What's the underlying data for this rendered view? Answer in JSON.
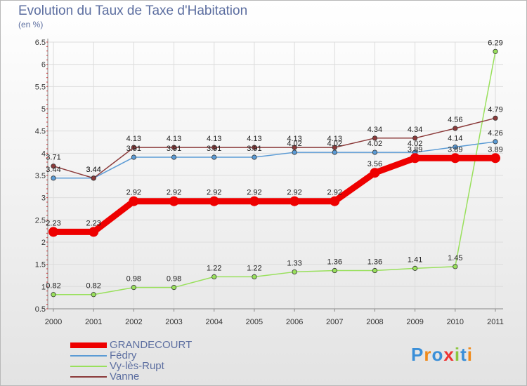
{
  "title": "Evolution du Taux de Taxe d'Habitation",
  "subtitle": "(en %)",
  "logo": "Proxiti",
  "chart_data": {
    "type": "line",
    "title": "Evolution du Taux de Taxe d'Habitation",
    "ylabel": "(en %)",
    "x": [
      "2000",
      "2001",
      "2002",
      "2003",
      "2004",
      "2005",
      "2006",
      "2007",
      "2008",
      "2009",
      "2010",
      "2011"
    ],
    "ylim": [
      0.5,
      6.5
    ],
    "yticks": [
      "0.5",
      "1",
      "1.5",
      "2",
      "2.5",
      "3",
      "3.5",
      "4",
      "4.5",
      "5",
      "5.5",
      "6",
      "6.5"
    ],
    "series": [
      {
        "name": "Fédry",
        "color": "#5b9bd5",
        "values": [
          3.44,
          3.44,
          3.91,
          3.91,
          3.91,
          3.91,
          4.02,
          4.02,
          4.02,
          4.02,
          4.14,
          4.26
        ],
        "labels": [
          "3.44",
          "3.44",
          "3.91",
          "3.91",
          "3.91",
          "3.91",
          "4.02",
          "4.02",
          "4.02",
          "4.02",
          "4.14",
          "4.26"
        ]
      },
      {
        "name": "Vy-lès-Rupt",
        "color": "#99e05c",
        "values": [
          0.82,
          0.82,
          0.98,
          0.98,
          1.22,
          1.22,
          1.33,
          1.36,
          1.36,
          1.41,
          1.45,
          6.29
        ],
        "labels": [
          "0.82",
          "0.82",
          "0.98",
          "0.98",
          "1.22",
          "1.22",
          "1.33",
          "1.36",
          "1.36",
          "1.41",
          "1.45",
          "6.29"
        ]
      },
      {
        "name": "Vanne",
        "color": "#8b3a3a",
        "values": [
          3.71,
          3.44,
          4.13,
          4.13,
          4.13,
          4.13,
          4.13,
          4.13,
          4.34,
          4.34,
          4.56,
          4.79
        ],
        "labels": [
          "3.71",
          "3.44",
          "4.13",
          "4.13",
          "4.13",
          "4.13",
          "4.13",
          "4.13",
          "4.34",
          "4.34",
          "4.56",
          "4.79"
        ]
      },
      {
        "name": "GRANDECOURT",
        "color": "#ee0000",
        "values": [
          2.23,
          2.23,
          2.92,
          2.92,
          2.92,
          2.92,
          2.92,
          2.92,
          3.56,
          3.89,
          3.89,
          3.89
        ],
        "labels": [
          "2.23",
          "2.23",
          "2.92",
          "2.92",
          "2.92",
          "2.92",
          "2.92",
          "2.92",
          "3.56",
          "3.89",
          "3.89",
          "3.89"
        ]
      }
    ],
    "legend": [
      "GRANDECOURT",
      "Fédry",
      "Vy-lès-Rupt",
      "Vanne"
    ]
  }
}
